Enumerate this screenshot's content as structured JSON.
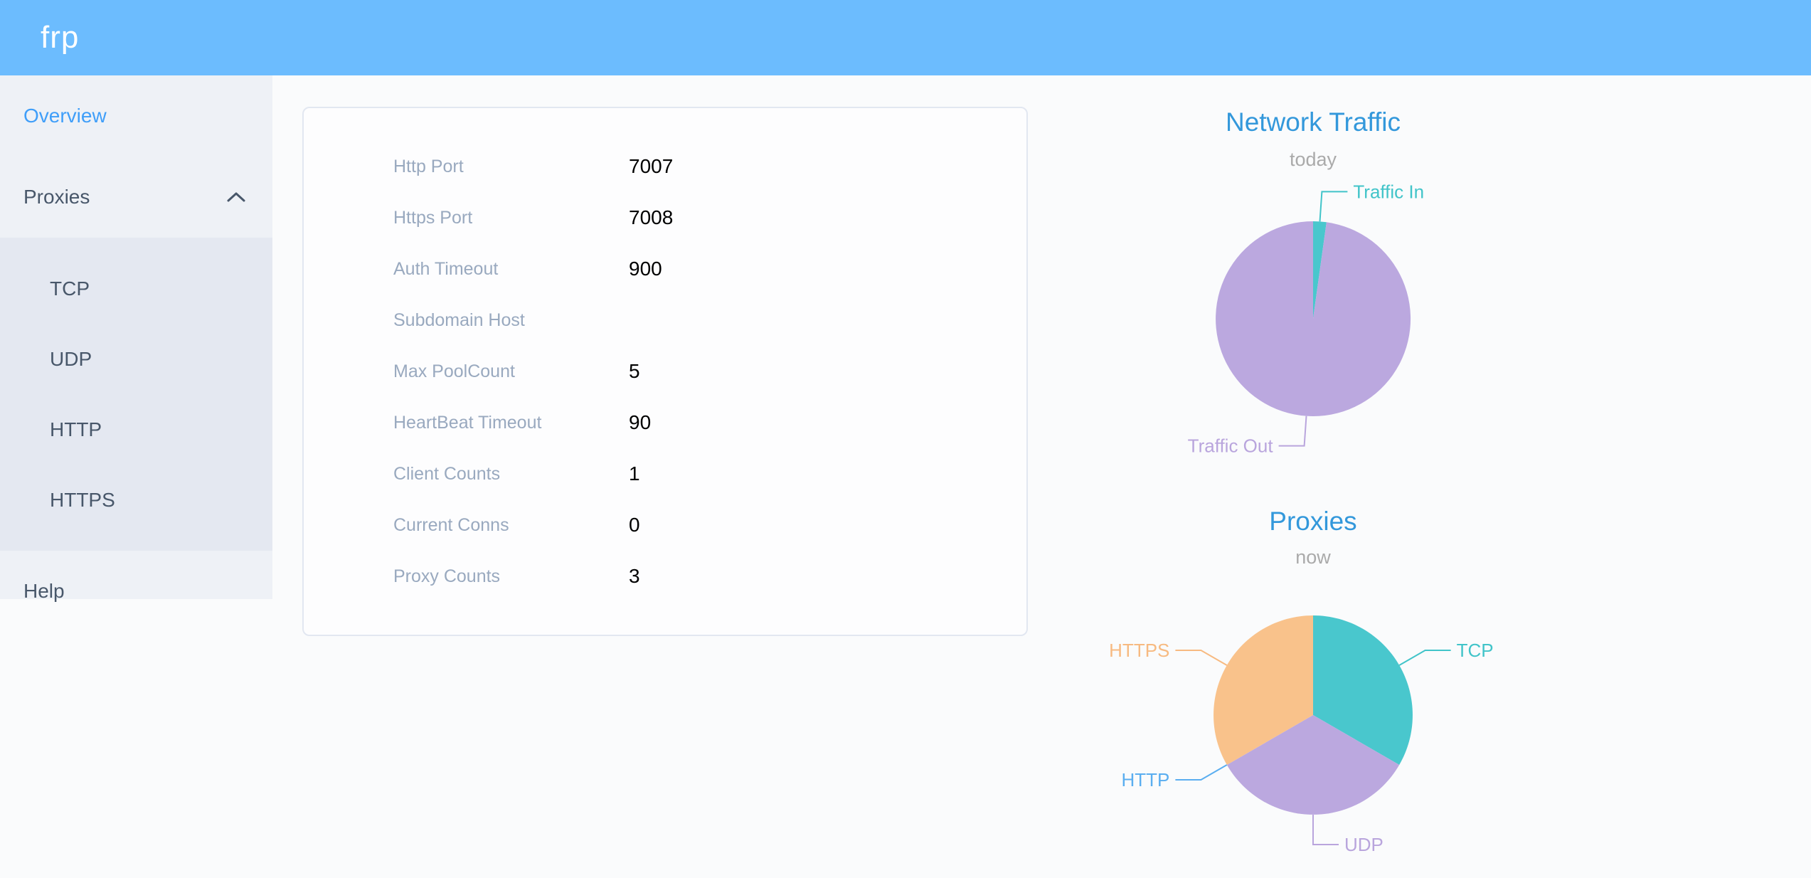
{
  "header": {
    "logo": "frp"
  },
  "sidebar": {
    "items": [
      {
        "label": "Overview",
        "active": true
      },
      {
        "label": "Proxies",
        "expanded": true,
        "children": [
          "TCP",
          "UDP",
          "HTTP",
          "HTTPS"
        ]
      },
      {
        "label": "Help"
      }
    ]
  },
  "panel": {
    "rows": [
      {
        "label": "Http Port",
        "value": "7007"
      },
      {
        "label": "Https Port",
        "value": "7008"
      },
      {
        "label": "Auth Timeout",
        "value": "900"
      },
      {
        "label": "Subdomain Host",
        "value": ""
      },
      {
        "label": "Max PoolCount",
        "value": "5"
      },
      {
        "label": "HeartBeat Timeout",
        "value": "90"
      },
      {
        "label": "Client Counts",
        "value": "1"
      },
      {
        "label": "Current Conns",
        "value": "0"
      },
      {
        "label": "Proxy Counts",
        "value": "3"
      }
    ]
  },
  "colors": {
    "header_bg": "#6cbcfe",
    "sidebar_bg": "#eef1f6",
    "submenu_bg": "#e4e8f1",
    "menu_text": "#48576a",
    "menu_active": "#3f9ef9",
    "chart_title_blue": "#3398db",
    "subtitle_gray": "#aaaaaa",
    "teal": "#49c7cd",
    "purple": "#bba8df",
    "orange": "#f9c28b",
    "http_blue": "#5aaef0",
    "label_gray": "#99a9bf"
  },
  "chart_data": [
    {
      "type": "pie",
      "title": "Network Traffic",
      "subtitle": "today",
      "legend": "none",
      "labels": "outside-with-leader-lines",
      "start_angle": "12-oclock-clockwise",
      "value_note": "percent share estimated from arc length",
      "series": [
        {
          "name": "Traffic In",
          "value": 2.2,
          "color": "#49c7cd",
          "label_color": "#41c4c9"
        },
        {
          "name": "Traffic Out",
          "value": 97.8,
          "color": "#bba8df",
          "label_color": "#b9a5dd"
        }
      ]
    },
    {
      "type": "pie",
      "title": "Proxies",
      "subtitle": "now",
      "legend": "none",
      "labels": "outside-with-leader-lines",
      "start_angle": "12-oclock-clockwise",
      "value_note": "proxy counts by type",
      "series": [
        {
          "name": "TCP",
          "value": 1,
          "color": "#49c7cd",
          "label_color": "#41c4c9"
        },
        {
          "name": "UDP",
          "value": 1,
          "color": "#bba8df",
          "label_color": "#b9a5dd"
        },
        {
          "name": "HTTP",
          "value": 0,
          "color": "#5aaef0",
          "label_color": "#5aaef0"
        },
        {
          "name": "HTTPS",
          "value": 1,
          "color": "#f9c28b",
          "label_color": "#f7ba81"
        }
      ]
    }
  ]
}
